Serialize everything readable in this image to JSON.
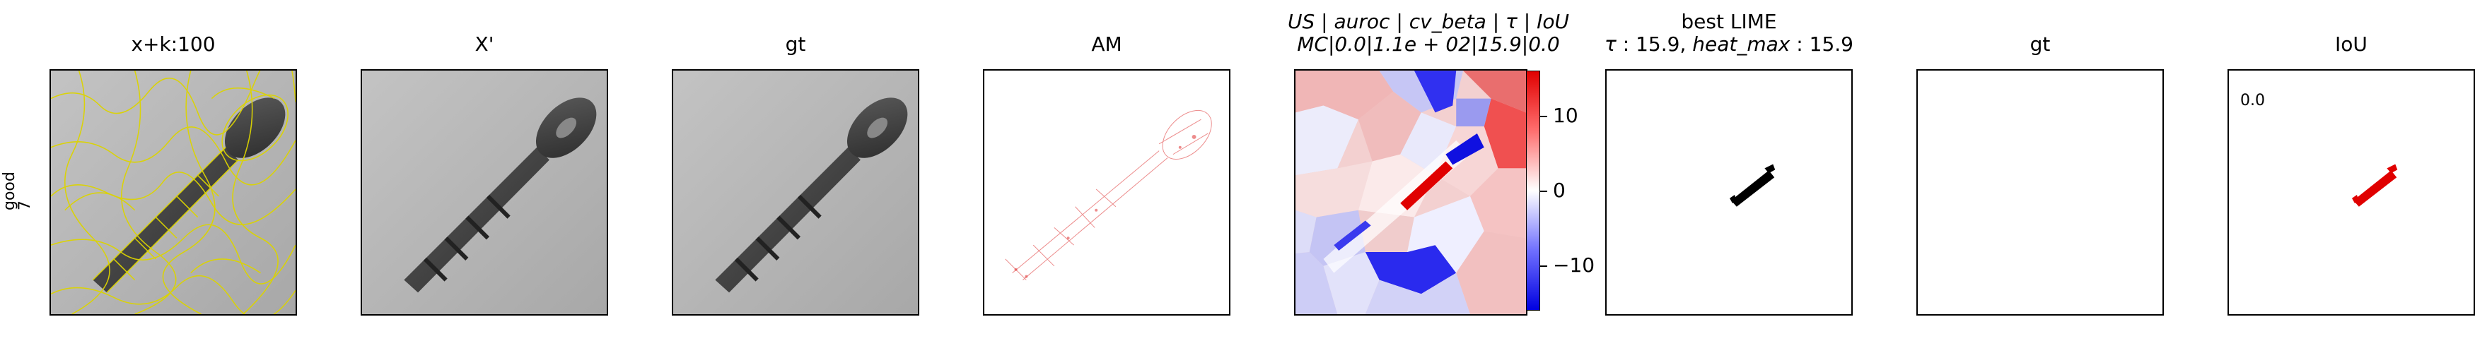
{
  "row_label": {
    "line1": "good",
    "line2": "7"
  },
  "panels": [
    {
      "title": "x+k:100"
    },
    {
      "title": "X'"
    },
    {
      "title": "gt"
    },
    {
      "title": "AM"
    },
    {
      "title_line1_parts": [
        "US",
        "auroc",
        "cv_beta",
        "τ",
        "IoU"
      ],
      "title_line1_sep": " | ",
      "title_line2": "MC|0.0|1.1e + 02|15.9|0.0"
    },
    {
      "title_line1": "best LIME",
      "title_line2_tau": "τ",
      "title_line2_a": " : 15.9, ",
      "title_line2_heat": "heat_max",
      "title_line2_b": " : 15.9"
    },
    {
      "title": "gt"
    },
    {
      "title": "IoU",
      "value_text": "0.0"
    }
  ],
  "colorbar": {
    "ticks": [
      "10",
      "0",
      "−10"
    ],
    "colors": {
      "top": "#e00000",
      "mid": "#ffffff",
      "bottom": "#0000e0"
    }
  },
  "colors": {
    "screw_fill": "#3f3f3f",
    "lime_mask": "#000000",
    "iou_mask": "#e00000",
    "superpixel_edges": "#e8e020"
  }
}
